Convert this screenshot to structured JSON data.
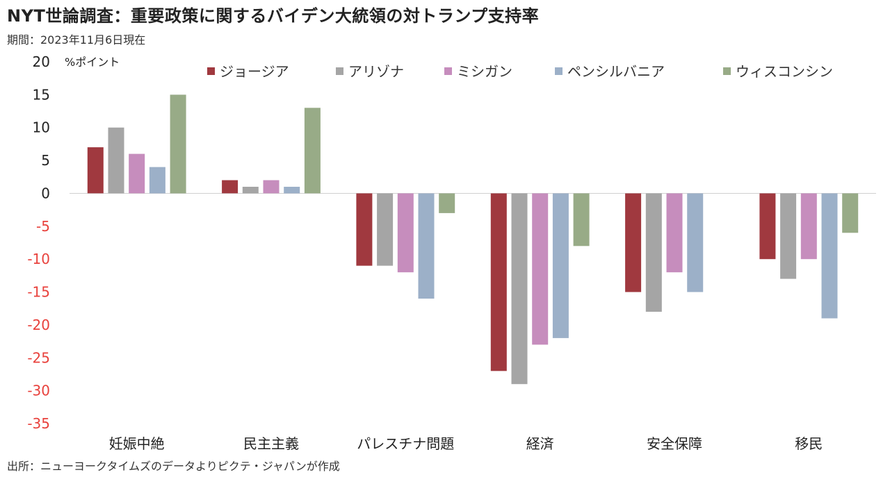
{
  "title": "NYT世論調査：重要政策に関するバイデン大統領の対トランプ支持率",
  "subtitle": "期間：2023年11月6日現在",
  "source": "出所：ニューヨークタイムズのデータよりピクテ・ジャパンが作成",
  "chart_data": {
    "type": "bar",
    "title": "NYT世論調査：重要政策に関するバイデン大統領の対トランプ支持率",
    "subtitle": "期間：2023年11月6日現在",
    "ylabel": "%ポイント",
    "ylim": [
      -35,
      20
    ],
    "yticks": [
      "20",
      "15",
      "10",
      "5",
      "0",
      "-5",
      "-10",
      "-15",
      "-20",
      "-25",
      "-30",
      "-35"
    ],
    "negative_tick_color": "#e8413c",
    "categories": [
      "妊娠中絶",
      "民主主義",
      "パレスチナ問題",
      "経済",
      "安全保障",
      "移民"
    ],
    "series": [
      {
        "name": "ジョージア",
        "color": "#a0393f",
        "values": [
          7,
          2,
          -11,
          -27,
          -15,
          -10
        ]
      },
      {
        "name": "アリゾナ",
        "color": "#a5a5a5",
        "values": [
          10,
          1,
          -11,
          -29,
          -18,
          -13
        ]
      },
      {
        "name": "ミシガン",
        "color": "#c68dbd",
        "values": [
          6,
          2,
          -12,
          -23,
          -12,
          -10
        ]
      },
      {
        "name": "ペンシルバニア",
        "color": "#9cb0c8",
        "values": [
          4,
          1,
          -16,
          -22,
          -15,
          -19
        ]
      },
      {
        "name": "ウィスコンシン",
        "color": "#98ab87",
        "values": [
          15,
          13,
          -3,
          -8,
          null,
          -6
        ]
      }
    ],
    "legend": "top",
    "grid": false
  }
}
